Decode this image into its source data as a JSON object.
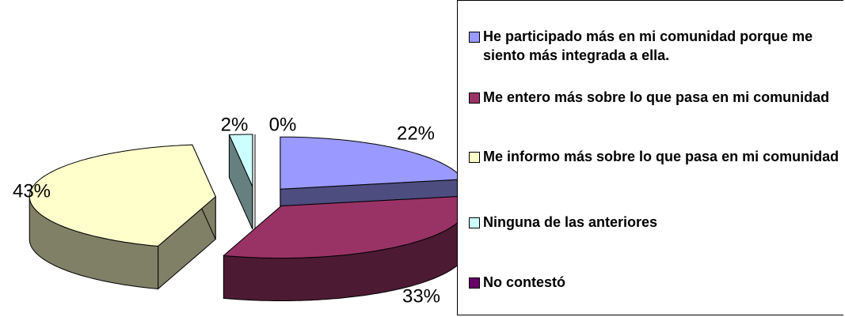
{
  "chart_data": {
    "type": "pie",
    "categories": [
      "He participado más en mi comunidad porque me siento más integrada a ella.",
      "Me entero más sobre lo que pasa en mi comunidad",
      "Me informo más sobre lo que pasa en mi comunidad",
      "Ninguna de las anteriores",
      "No contestó"
    ],
    "values": [
      22,
      33,
      43,
      2,
      0
    ],
    "value_labels": [
      "22%",
      "33%",
      "43%",
      "2%",
      "0%"
    ],
    "colors": [
      "#9999ff",
      "#993366",
      "#ffffcc",
      "#ccffff",
      "#660066"
    ],
    "legend": "right"
  }
}
